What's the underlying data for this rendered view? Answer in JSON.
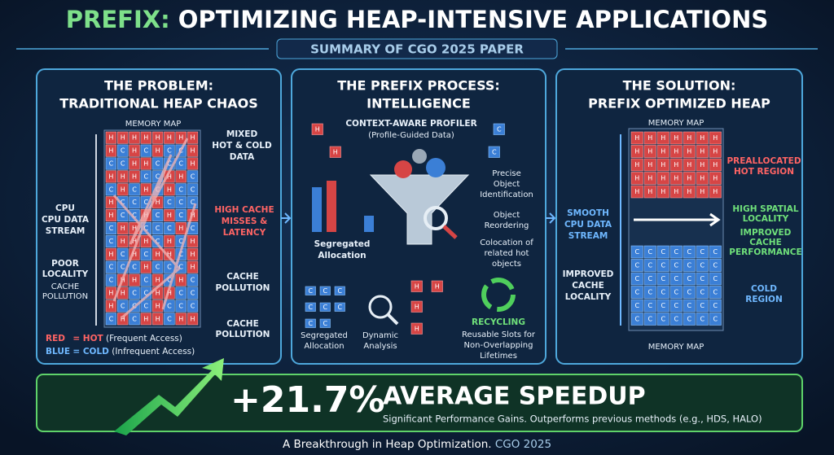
{
  "header": {
    "title_prefix": "PREFIX:",
    "title_rest": "OPTIMIZING HEAP-INTENSIVE APPLICATIONS",
    "subtitle": "SUMMARY OF CGO 2025 PAPER"
  },
  "cells": {
    "hot": "H",
    "cold": "C"
  },
  "problem": {
    "title": [
      "THE PROBLEM:",
      "TRADITIONAL HEAP CHAOS"
    ],
    "map_label": "MEMORY MAP",
    "cpu_stream": [
      "CPU",
      "CPU DATA",
      "STREAM"
    ],
    "poor_locality": [
      "POOR",
      "LOCALITY"
    ],
    "cache_pollution_left": [
      "CACHE",
      "POLLUTION"
    ],
    "mixed": [
      "MIXED",
      "HOT & COLD",
      "DATA"
    ],
    "misses": [
      "HIGH CACHE",
      "MISSES &",
      "LATENCY"
    ],
    "pollution_1": [
      "CACHE",
      "POLLUTION"
    ],
    "pollution_2": [
      "CACHE",
      "POLLUTION"
    ],
    "legend": {
      "red": "RED",
      "hot": "= HOT",
      "hot_note": "(Frequent Access)",
      "blue": "BLUE",
      "cold": "= COLD",
      "cold_note": "(Infrequent Access)"
    }
  },
  "process": {
    "title": [
      "THE PREFIX PROCESS:",
      "INTELLIGENCE"
    ],
    "profiler": "CONTEXT-AWARE PROFILER",
    "profiler_note": "(Profile-Guided Data)",
    "segregated": [
      "Segregated",
      "Allocation"
    ],
    "identification": [
      "Precise",
      "Object",
      "Identification"
    ],
    "reordering": [
      "Object",
      "Reordering"
    ],
    "colocation": [
      "Colocation of",
      "related hot",
      "objects"
    ],
    "segregated_bottom": [
      "Segregated",
      "Allocation"
    ],
    "dynamic": [
      "Dynamic",
      "Analysis"
    ],
    "recycling": "RECYCLING",
    "recycling_note": [
      "Reusable Slots for",
      "Non-Overlapping",
      "Lifetimes"
    ]
  },
  "solution": {
    "title": [
      "THE SOLUTION:",
      "PREFIX OPTIMIZED HEAP"
    ],
    "map_label_top": "MEMORY MAP",
    "map_label_bottom": "MEMORY MAP",
    "smooth": [
      "SMOOTH",
      "CPU DATA",
      "STREAM"
    ],
    "improved_locality": [
      "IMPROVED",
      "CACHE",
      "LOCALITY"
    ],
    "hot_region": [
      "PREALLOCATED",
      "HOT REGION"
    ],
    "spatial": [
      "HIGH SPATIAL",
      "LOCALITY"
    ],
    "performance": [
      "IMPROVED",
      "CACHE",
      "PERFORMANCE"
    ],
    "cold_region": [
      "COLD",
      "REGION"
    ]
  },
  "result": {
    "speedup": "+21.7%",
    "headline": "AVERAGE SPEEDUP",
    "note": "Significant Performance Gains. Outperforms previous methods (e.g., HDS, HALO)"
  },
  "footer": {
    "text": "A Breakthrough in Heap Optimization.",
    "venue": "CGO 2025"
  }
}
